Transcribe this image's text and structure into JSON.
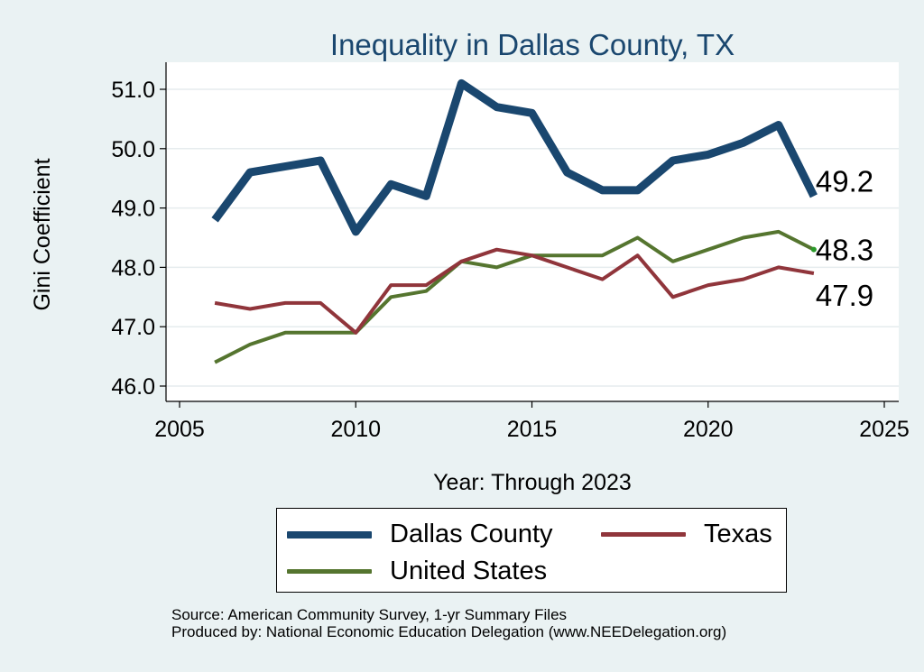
{
  "chart_data": {
    "type": "line",
    "title": "Inequality in Dallas County, TX",
    "xlabel": "Year: Through 2023",
    "ylabel": "Gini Coefficient",
    "xlim": [
      2005,
      2025
    ],
    "ylim": [
      46.0,
      51.0
    ],
    "xticks": [
      2005,
      2010,
      2015,
      2020,
      2025
    ],
    "yticks": [
      46.0,
      47.0,
      48.0,
      49.0,
      50.0,
      51.0
    ],
    "x": [
      2006,
      2007,
      2008,
      2009,
      2010,
      2011,
      2012,
      2013,
      2014,
      2015,
      2016,
      2017,
      2018,
      2019,
      2020,
      2021,
      2022,
      2023
    ],
    "series": [
      {
        "name": "Dallas County",
        "color": "#1a476f",
        "values": [
          48.8,
          49.6,
          49.7,
          49.8,
          48.6,
          49.4,
          49.2,
          51.1,
          50.7,
          50.6,
          49.6,
          49.3,
          49.3,
          49.8,
          49.9,
          50.1,
          50.4,
          49.2
        ],
        "end_label": "49.2"
      },
      {
        "name": "Texas",
        "color": "#90353b",
        "values": [
          47.4,
          47.3,
          47.4,
          47.4,
          46.9,
          47.7,
          47.7,
          48.1,
          48.3,
          48.2,
          48.0,
          47.8,
          48.2,
          47.5,
          47.7,
          47.8,
          48.0,
          47.9
        ],
        "end_label": "47.9"
      },
      {
        "name": "United States",
        "color": "#55752f",
        "values": [
          46.4,
          46.7,
          46.9,
          46.9,
          46.9,
          47.5,
          47.6,
          48.1,
          48.0,
          48.2,
          48.2,
          48.2,
          48.5,
          48.1,
          48.3,
          48.5,
          48.6,
          48.3
        ],
        "end_label": "48.3"
      }
    ],
    "legend": {
      "items": [
        "Dallas County",
        "Texas",
        "United States"
      ],
      "placement": "bottom"
    },
    "grid": true
  },
  "footer": {
    "source": "Source: American Community Survey, 1-yr Summary Files",
    "produced_by": "Produced by: National Economic Education Delegation (www.NEEDelegation.org)"
  }
}
